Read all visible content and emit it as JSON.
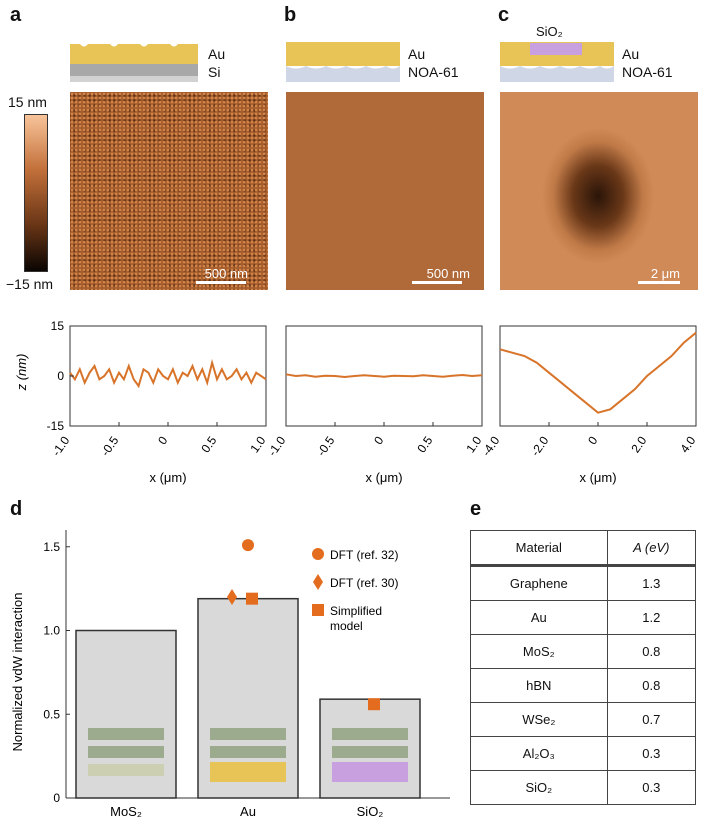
{
  "panels": {
    "a": {
      "letter": "a",
      "layer_top": "Au",
      "layer_bottom": "Si",
      "scale_bar": "500 nm",
      "colorbar_max": "15 nm",
      "colorbar_min": "−15 nm"
    },
    "b": {
      "letter": "b",
      "layer_top": "Au",
      "layer_bottom": "NOA-61",
      "scale_bar": "500 nm"
    },
    "c": {
      "letter": "c",
      "layer_inset": "SiO₂",
      "layer_top": "Au",
      "layer_bottom": "NOA-61",
      "scale_bar": "2 μm"
    },
    "d": {
      "letter": "d"
    },
    "e": {
      "letter": "e"
    }
  },
  "colors": {
    "profile": "#d8742a",
    "au": "#e8c456",
    "sio2": "#c8a0e0",
    "bar_fill": "#d9d9d9",
    "marker": "#e36c1f"
  },
  "chart_data": [
    {
      "type": "line",
      "panel": "a",
      "xlabel": "x (μm)",
      "ylabel": "z (nm)",
      "xlim": [
        -1.0,
        1.0
      ],
      "ylim": [
        -15,
        15
      ],
      "xticks": [
        "-1.0",
        "-0.5",
        "0",
        "0.5",
        "1.0"
      ],
      "yticks": [
        "15",
        "0",
        "-15"
      ],
      "x": [
        -1.0,
        -0.95,
        -0.9,
        -0.85,
        -0.8,
        -0.75,
        -0.7,
        -0.65,
        -0.6,
        -0.55,
        -0.5,
        -0.45,
        -0.4,
        -0.35,
        -0.3,
        -0.25,
        -0.2,
        -0.15,
        -0.1,
        -0.05,
        0,
        0.05,
        0.1,
        0.15,
        0.2,
        0.25,
        0.3,
        0.35,
        0.4,
        0.45,
        0.5,
        0.55,
        0.6,
        0.65,
        0.7,
        0.75,
        0.8,
        0.85,
        0.9,
        0.95,
        1.0
      ],
      "y": [
        1,
        -1,
        2,
        -2,
        1,
        3,
        -1,
        0,
        2,
        -2,
        1,
        -1,
        3,
        -1,
        -3,
        2,
        1,
        -2,
        2,
        0,
        -1,
        2,
        -2,
        1,
        0,
        3,
        -1,
        2,
        -2,
        4,
        -1,
        2,
        -1,
        0,
        2,
        -1,
        1,
        -2,
        1,
        0,
        -1
      ]
    },
    {
      "type": "line",
      "panel": "b",
      "xlabel": "x (μm)",
      "xlim": [
        -1.0,
        1.0
      ],
      "ylim": [
        -15,
        15
      ],
      "xticks": [
        "-1.0",
        "-0.5",
        "0",
        "0.5",
        "1.0"
      ],
      "x": [
        -1.0,
        -0.9,
        -0.8,
        -0.7,
        -0.6,
        -0.5,
        -0.4,
        -0.3,
        -0.2,
        -0.1,
        0,
        0.1,
        0.2,
        0.3,
        0.4,
        0.5,
        0.6,
        0.7,
        0.8,
        0.9,
        1.0
      ],
      "y": [
        0.5,
        0,
        0.2,
        -0.2,
        0.1,
        0,
        -0.3,
        0,
        0.2,
        0,
        -0.2,
        0.1,
        0,
        -0.1,
        0.2,
        0,
        -0.2,
        0.1,
        0.3,
        0,
        0.2
      ]
    },
    {
      "type": "line",
      "panel": "c",
      "xlabel": "x (μm)",
      "xlim": [
        -4.0,
        4.0
      ],
      "ylim": [
        -15,
        15
      ],
      "xticks": [
        "-4.0",
        "-2.0",
        "0",
        "2.0",
        "4.0"
      ],
      "x": [
        -4.0,
        -3.5,
        -3.0,
        -2.5,
        -2.0,
        -1.5,
        -1.0,
        -0.5,
        0,
        0.5,
        1.0,
        1.5,
        2.0,
        2.5,
        3.0,
        3.5,
        4.0
      ],
      "y": [
        8,
        7,
        6,
        4,
        1,
        -2,
        -5,
        -8,
        -11,
        -10,
        -7,
        -4,
        0,
        3,
        6,
        10,
        13
      ]
    },
    {
      "type": "bar",
      "panel": "d",
      "categories": [
        "MoS₂",
        "Au",
        "SiO₂"
      ],
      "values": [
        1.0,
        1.19,
        0.59
      ],
      "ylabel": "Normalized vdW interaction",
      "ylim": [
        0,
        1.6
      ],
      "yticks": [
        "0",
        "0.5",
        "1.0",
        "1.5"
      ],
      "series": [
        {
          "name": "DFT (ref. 32)",
          "marker": "circle",
          "points": [
            {
              "category": "Au",
              "value": 1.51
            }
          ]
        },
        {
          "name": "DFT (ref. 30)",
          "marker": "diamond",
          "points": [
            {
              "category": "Au",
              "value": 1.2
            }
          ]
        },
        {
          "name": "Simplified model",
          "marker": "square",
          "points": [
            {
              "category": "Au",
              "value": 1.19
            },
            {
              "category": "SiO₂",
              "value": 0.56
            }
          ]
        }
      ]
    },
    {
      "type": "table",
      "panel": "e",
      "headers": [
        "Material",
        "A (eV)"
      ],
      "rows": [
        [
          "Graphene",
          "1.3"
        ],
        [
          "Au",
          "1.2"
        ],
        [
          "MoS₂",
          "0.8"
        ],
        [
          "hBN",
          "0.8"
        ],
        [
          "WSe₂",
          "0.7"
        ],
        [
          "Al₂O₃",
          "0.3"
        ],
        [
          "SiO₂",
          "0.3"
        ]
      ]
    }
  ]
}
